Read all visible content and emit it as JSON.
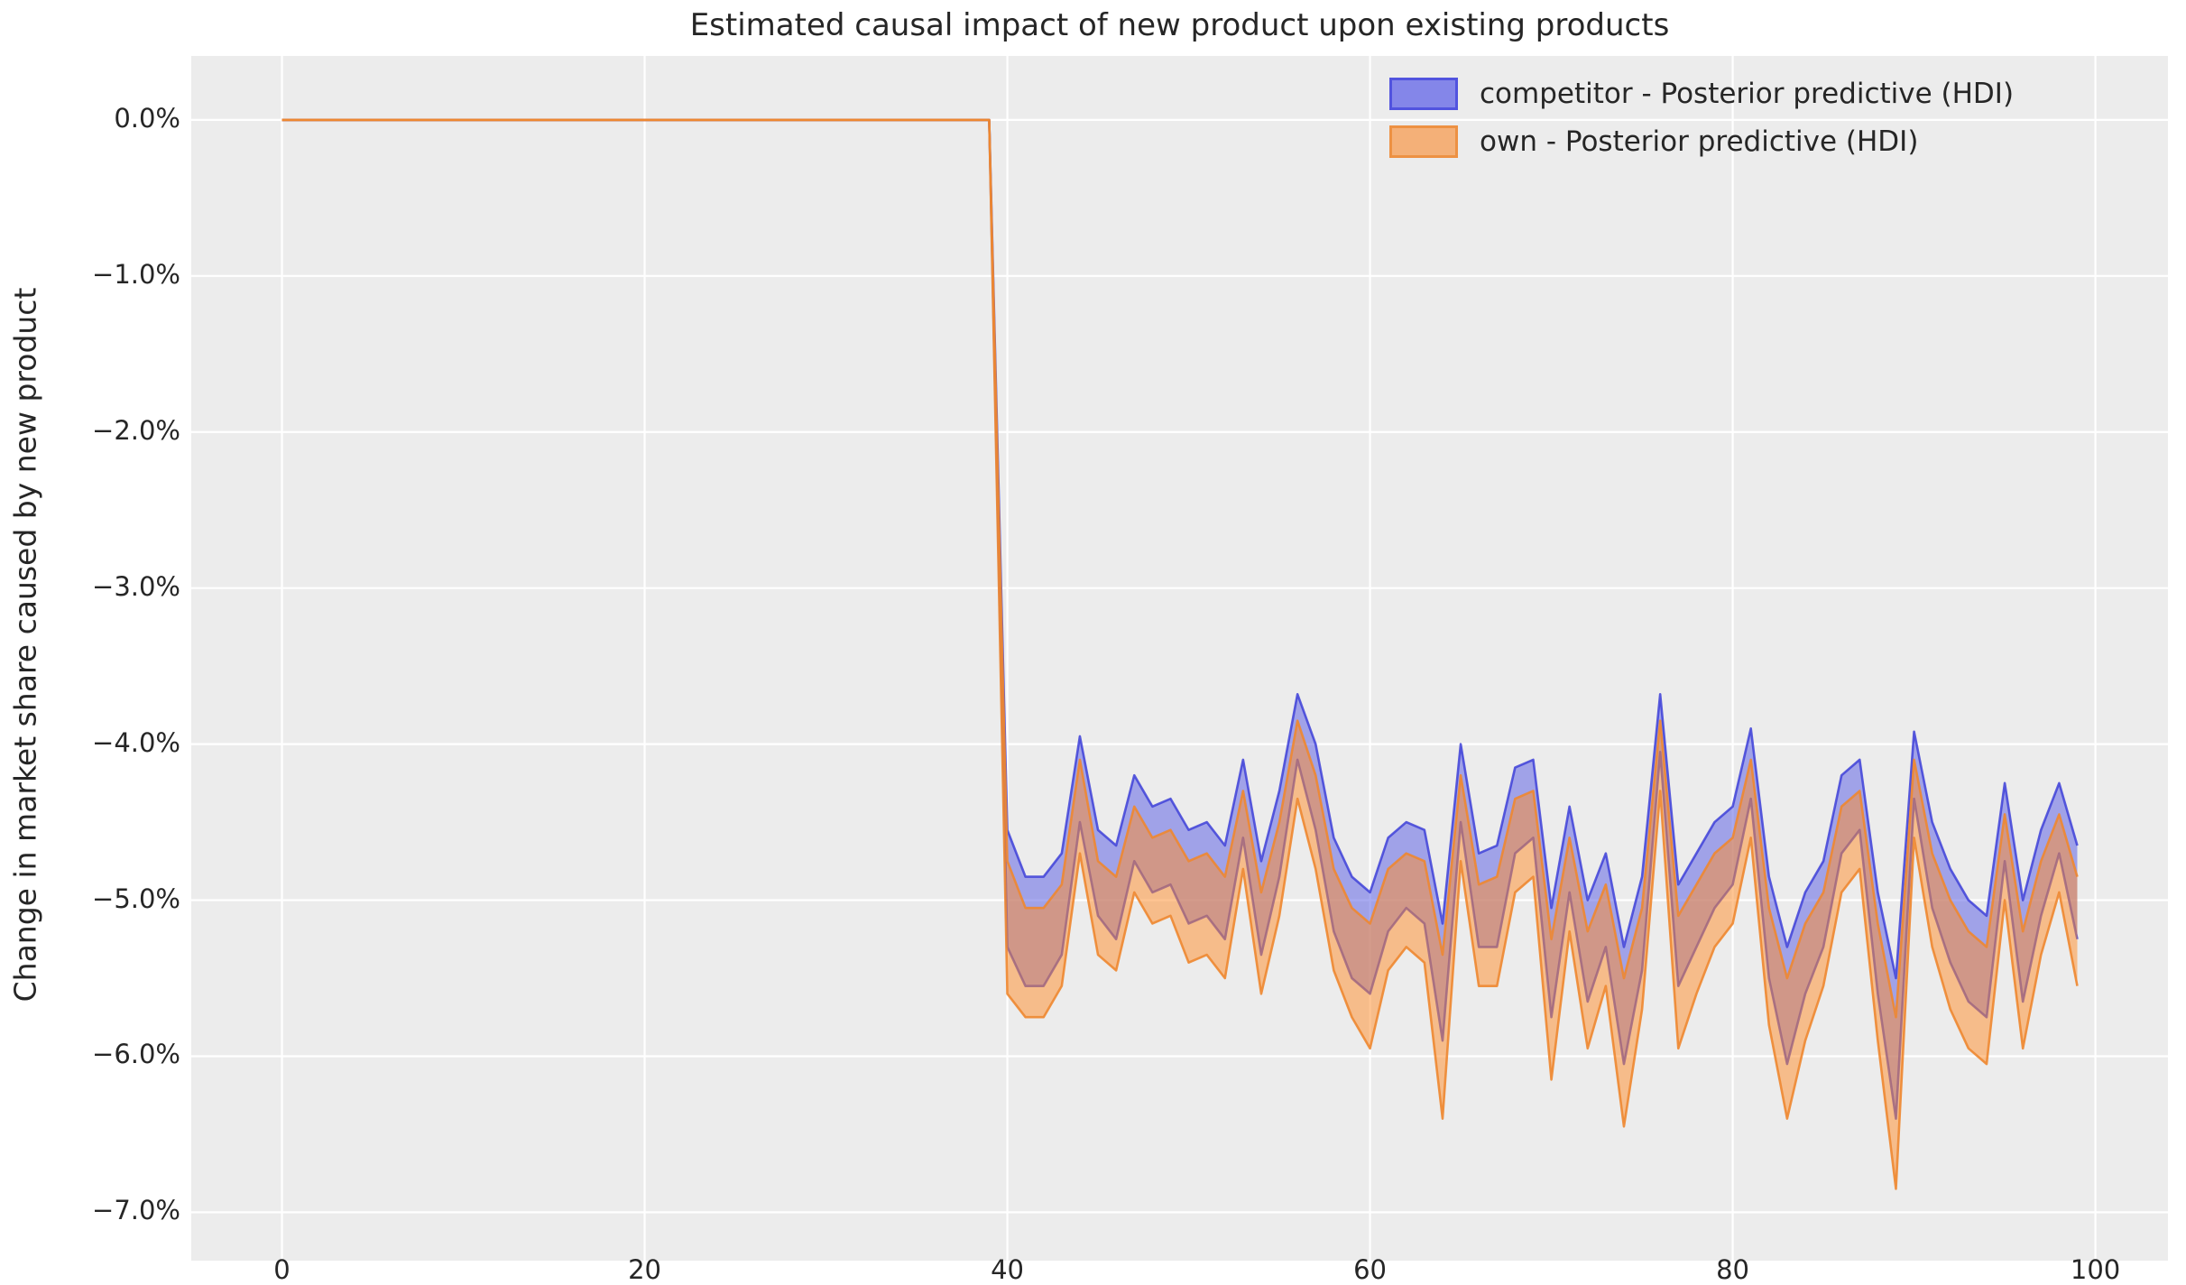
{
  "figure": {
    "title": "Estimated causal impact of new product upon existing products",
    "ylabel": "Change in market share caused by new product"
  },
  "legend": {
    "items": [
      {
        "label": "competitor - Posterior predictive (HDI)",
        "swatch_fill": "#8486e9",
        "swatch_border": "#5153df"
      },
      {
        "label": "own - Posterior predictive (HDI)",
        "swatch_fill": "#f4b078",
        "swatch_border": "#ed9143"
      }
    ]
  },
  "colors": {
    "plot_background": "#ececec",
    "gridline": "#ffffff",
    "figure_background": "#ffffff",
    "text": "#262626",
    "competitor_fill": "rgba(90,93,228,0.52)",
    "competitor_edge": "rgba(62,65,216,0.85)",
    "own_fill": "rgba(255,139,40,0.50)",
    "own_edge": "rgba(238,135,48,0.90)"
  },
  "chart_data": {
    "type": "area",
    "subtype": "hdi-bands",
    "title": "Estimated causal impact of new product upon existing products",
    "xlabel": "",
    "ylabel": "Change in market share caused by new product",
    "grid": true,
    "legend_position": "upper right",
    "xlim": [
      -5,
      104
    ],
    "ylim": [
      -7.31,
      0.41
    ],
    "x_ticks": {
      "values": [
        0,
        20,
        40,
        60,
        80,
        100
      ],
      "labels": [
        "0",
        "20",
        "40",
        "60",
        "80",
        "100"
      ]
    },
    "y_ticks": {
      "values": [
        0,
        -1,
        -2,
        -3,
        -4,
        -5,
        -6,
        -7
      ],
      "labels": [
        "0.0%",
        "−1.0%",
        "−2.0%",
        "−3.0%",
        "−4.0%",
        "−5.0%",
        "−6.0%",
        "−7.0%"
      ]
    },
    "intervention_note": "values are 0% for x = 0..39; impact begins at x = 40",
    "x": [
      0,
      1,
      2,
      3,
      4,
      5,
      6,
      7,
      8,
      9,
      10,
      11,
      12,
      13,
      14,
      15,
      16,
      17,
      18,
      19,
      20,
      21,
      22,
      23,
      24,
      25,
      26,
      27,
      28,
      29,
      30,
      31,
      32,
      33,
      34,
      35,
      36,
      37,
      38,
      39,
      40,
      41,
      42,
      43,
      44,
      45,
      46,
      47,
      48,
      49,
      50,
      51,
      52,
      53,
      54,
      55,
      56,
      57,
      58,
      59,
      60,
      61,
      62,
      63,
      64,
      65,
      66,
      67,
      68,
      69,
      70,
      71,
      72,
      73,
      74,
      75,
      76,
      77,
      78,
      79,
      80,
      81,
      82,
      83,
      84,
      85,
      86,
      87,
      88,
      89,
      90,
      91,
      92,
      93,
      94,
      95,
      96,
      97,
      98,
      99
    ],
    "series": [
      {
        "name": "competitor - Posterior predictive (HDI)",
        "upper": [
          0,
          0,
          0,
          0,
          0,
          0,
          0,
          0,
          0,
          0,
          0,
          0,
          0,
          0,
          0,
          0,
          0,
          0,
          0,
          0,
          0,
          0,
          0,
          0,
          0,
          0,
          0,
          0,
          0,
          0,
          0,
          0,
          0,
          0,
          0,
          0,
          0,
          0,
          0,
          0,
          -4.55,
          -4.85,
          -4.85,
          -4.7,
          -3.95,
          -4.55,
          -4.65,
          -4.2,
          -4.4,
          -4.35,
          -4.55,
          -4.5,
          -4.65,
          -4.1,
          -4.75,
          -4.3,
          -3.68,
          -4.0,
          -4.6,
          -4.85,
          -4.95,
          -4.6,
          -4.5,
          -4.55,
          -5.15,
          -4.0,
          -4.7,
          -4.65,
          -4.15,
          -4.1,
          -5.05,
          -4.4,
          -5.0,
          -4.7,
          -5.3,
          -4.85,
          -3.68,
          -4.9,
          -4.7,
          -4.5,
          -4.4,
          -3.9,
          -4.85,
          -5.3,
          -4.95,
          -4.75,
          -4.2,
          -4.1,
          -4.95,
          -5.5,
          -3.92,
          -4.5,
          -4.8,
          -5.0,
          -5.1,
          -4.25,
          -5.0,
          -4.55,
          -4.25,
          -4.65
        ],
        "lower": [
          0,
          0,
          0,
          0,
          0,
          0,
          0,
          0,
          0,
          0,
          0,
          0,
          0,
          0,
          0,
          0,
          0,
          0,
          0,
          0,
          0,
          0,
          0,
          0,
          0,
          0,
          0,
          0,
          0,
          0,
          0,
          0,
          0,
          0,
          0,
          0,
          0,
          0,
          0,
          0,
          -5.3,
          -5.55,
          -5.55,
          -5.35,
          -4.5,
          -5.1,
          -5.25,
          -4.75,
          -4.95,
          -4.9,
          -5.15,
          -5.1,
          -5.25,
          -4.6,
          -5.35,
          -4.85,
          -4.1,
          -4.55,
          -5.2,
          -5.5,
          -5.6,
          -5.2,
          -5.05,
          -5.15,
          -5.9,
          -4.5,
          -5.3,
          -5.3,
          -4.7,
          -4.6,
          -5.75,
          -4.95,
          -5.65,
          -5.3,
          -6.05,
          -5.45,
          -4.05,
          -5.55,
          -5.3,
          -5.05,
          -4.9,
          -4.35,
          -5.5,
          -6.05,
          -5.6,
          -5.3,
          -4.7,
          -4.55,
          -5.6,
          -6.4,
          -4.35,
          -5.05,
          -5.4,
          -5.65,
          -5.75,
          -4.75,
          -5.65,
          -5.1,
          -4.7,
          -5.25
        ]
      },
      {
        "name": "own - Posterior predictive (HDI)",
        "upper": [
          0,
          0,
          0,
          0,
          0,
          0,
          0,
          0,
          0,
          0,
          0,
          0,
          0,
          0,
          0,
          0,
          0,
          0,
          0,
          0,
          0,
          0,
          0,
          0,
          0,
          0,
          0,
          0,
          0,
          0,
          0,
          0,
          0,
          0,
          0,
          0,
          0,
          0,
          0,
          0,
          -4.75,
          -5.05,
          -5.05,
          -4.9,
          -4.1,
          -4.75,
          -4.85,
          -4.4,
          -4.6,
          -4.55,
          -4.75,
          -4.7,
          -4.85,
          -4.3,
          -4.95,
          -4.5,
          -3.85,
          -4.2,
          -4.8,
          -5.05,
          -5.15,
          -4.8,
          -4.7,
          -4.75,
          -5.35,
          -4.2,
          -4.9,
          -4.85,
          -4.35,
          -4.3,
          -5.25,
          -4.6,
          -5.2,
          -4.9,
          -5.5,
          -5.05,
          -3.85,
          -5.1,
          -4.9,
          -4.7,
          -4.6,
          -4.1,
          -5.05,
          -5.5,
          -5.15,
          -4.95,
          -4.4,
          -4.3,
          -5.15,
          -5.75,
          -4.1,
          -4.7,
          -5.0,
          -5.2,
          -5.3,
          -4.45,
          -5.2,
          -4.75,
          -4.45,
          -4.85
        ],
        "lower": [
          0,
          0,
          0,
          0,
          0,
          0,
          0,
          0,
          0,
          0,
          0,
          0,
          0,
          0,
          0,
          0,
          0,
          0,
          0,
          0,
          0,
          0,
          0,
          0,
          0,
          0,
          0,
          0,
          0,
          0,
          0,
          0,
          0,
          0,
          0,
          0,
          0,
          0,
          0,
          0,
          -5.6,
          -5.75,
          -5.75,
          -5.55,
          -4.7,
          -5.35,
          -5.45,
          -4.95,
          -5.15,
          -5.1,
          -5.4,
          -5.35,
          -5.5,
          -4.8,
          -5.6,
          -5.1,
          -4.35,
          -4.8,
          -5.45,
          -5.75,
          -5.95,
          -5.45,
          -5.3,
          -5.4,
          -6.4,
          -4.75,
          -5.55,
          -5.55,
          -4.95,
          -4.85,
          -6.15,
          -5.2,
          -5.95,
          -5.55,
          -6.45,
          -5.7,
          -4.3,
          -5.95,
          -5.6,
          -5.3,
          -5.15,
          -4.6,
          -5.8,
          -6.4,
          -5.9,
          -5.55,
          -4.95,
          -4.8,
          -5.9,
          -6.85,
          -4.6,
          -5.3,
          -5.7,
          -5.95,
          -6.05,
          -5.0,
          -5.95,
          -5.35,
          -4.95,
          -5.55
        ]
      }
    ]
  }
}
